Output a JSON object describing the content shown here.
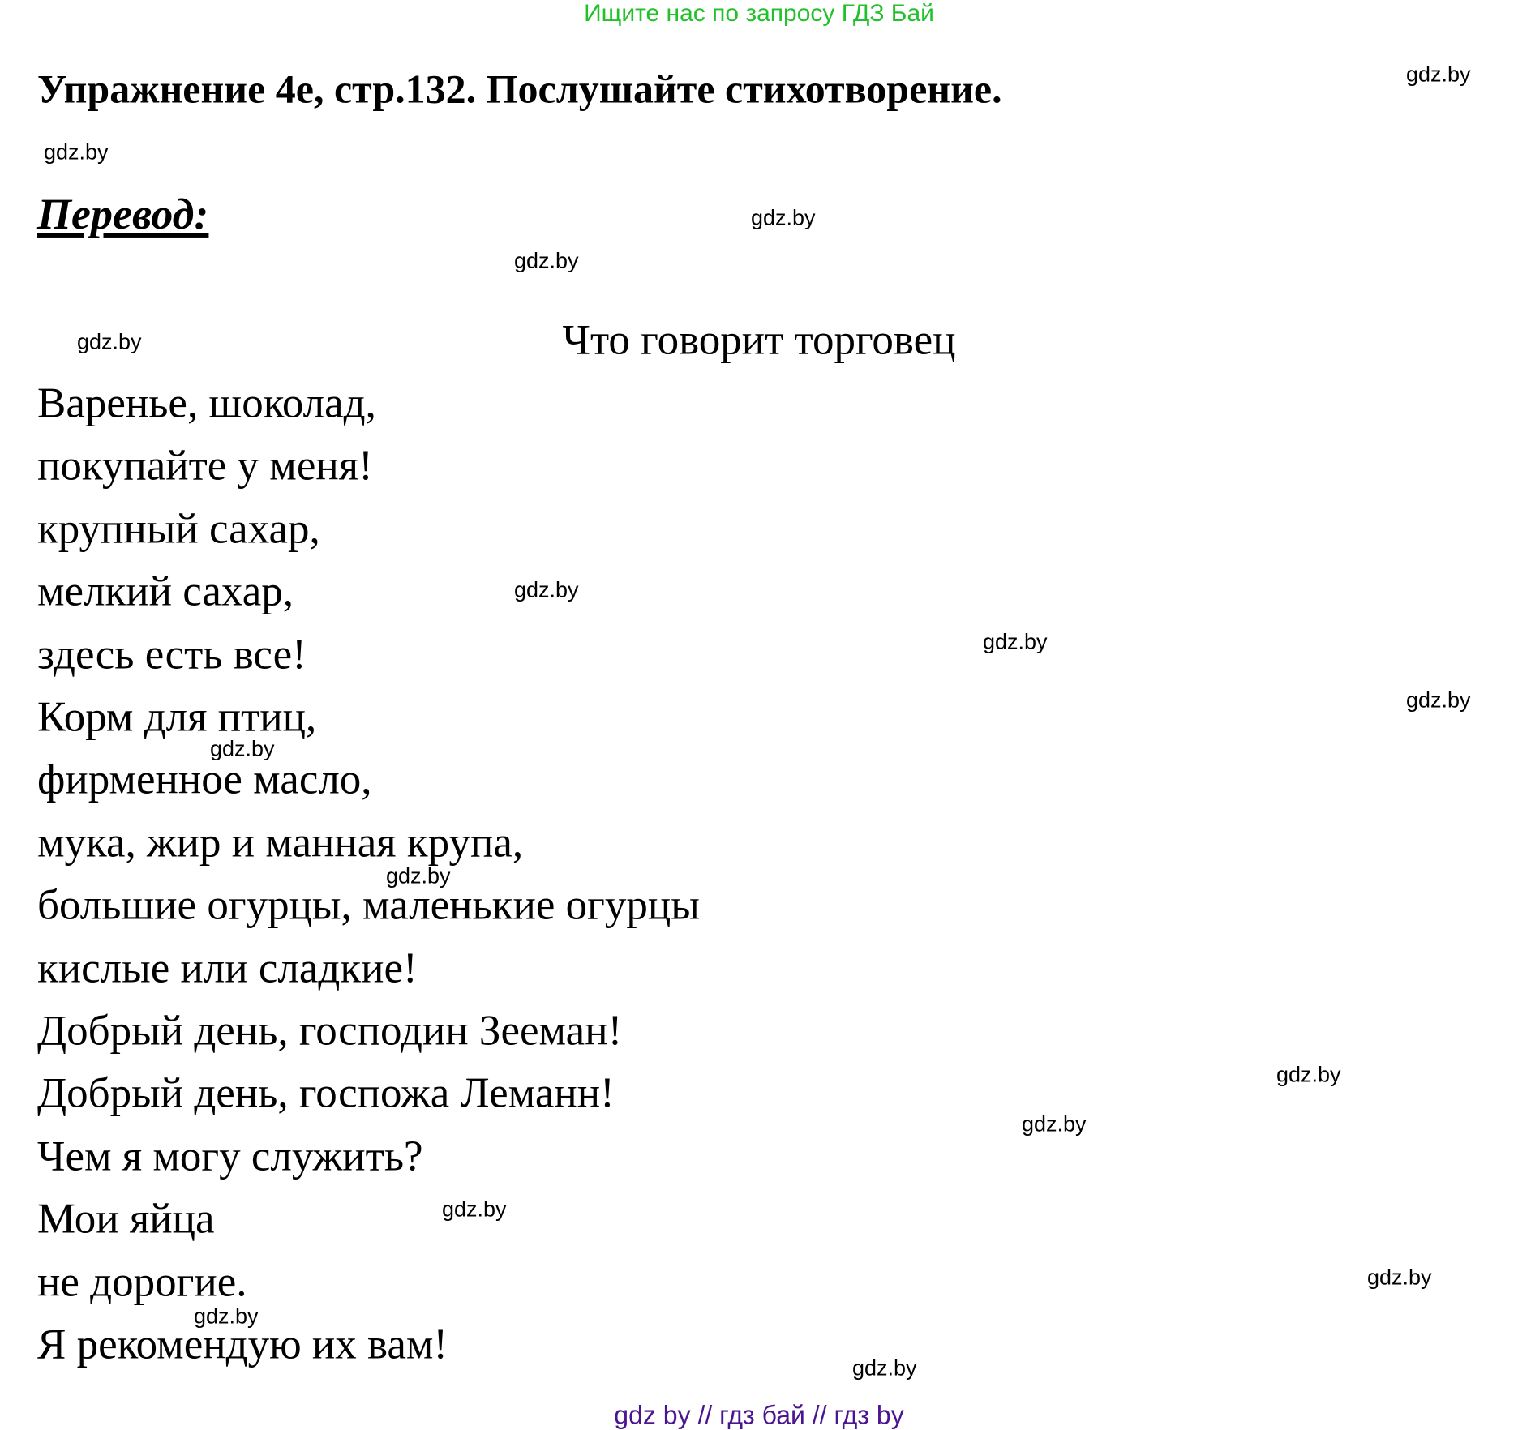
{
  "banner": "Ищите нас по запросу ГДЗ Бай",
  "title": "Упражнение 4е, стр.132. Послушайте стихотворение.",
  "translation_heading": "Перевод:",
  "poem": {
    "title": "Что говорит торговец",
    "lines": [
      "Варенье, шоколад,",
      "покупайте у меня!",
      "крупный сахар,",
      "мелкий сахар,",
      "здесь есть все!",
      "Корм для птиц,",
      "фирменное масло,",
      "мука, жир и манная крупа,",
      "большие огурцы, маленькие огурцы",
      "кислые или сладкие!",
      "Добрый день, господин Зееман!",
      "Добрый день, госпожа Леманн!",
      "Чем я могу служить?",
      "Мои яйца",
      "не дорогие.",
      "Я рекомендую их вам!"
    ]
  },
  "watermark": "gdz.by",
  "footer": "gdz by  //  гдз бай  //  гдз by",
  "colors": {
    "banner": "#22c02a",
    "footer": "#4b1490",
    "text": "#000000"
  }
}
